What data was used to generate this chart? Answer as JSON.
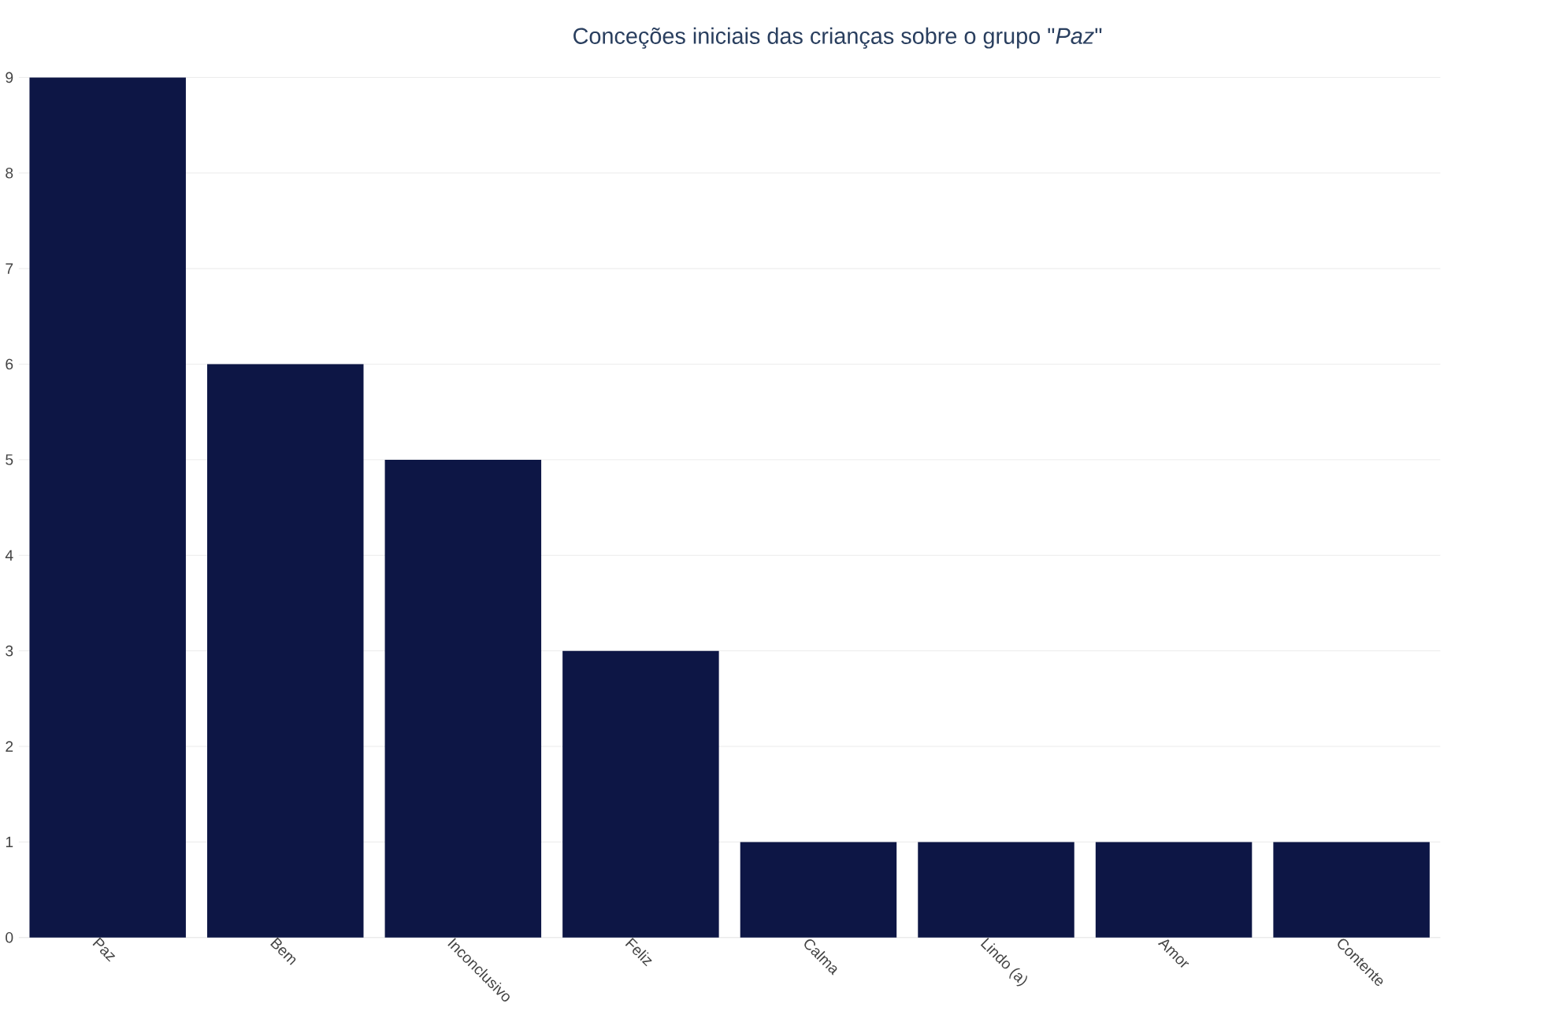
{
  "chart_data": {
    "type": "bar",
    "title": "Conceções iniciais das crianças sobre o grupo \"*Paz*\"",
    "categories": [
      "Paz",
      "Bem",
      "Inconclusivo",
      "Feliz",
      "Calma",
      "Lindo (a)",
      "Amor",
      "Contente"
    ],
    "values": [
      9,
      6,
      5,
      3,
      1,
      1,
      1,
      1
    ],
    "color": "#0d1645",
    "ylim": [
      0,
      9
    ],
    "yticks": [
      0,
      1,
      2,
      3,
      4,
      5,
      6,
      7,
      8,
      9
    ],
    "grid": "y"
  }
}
